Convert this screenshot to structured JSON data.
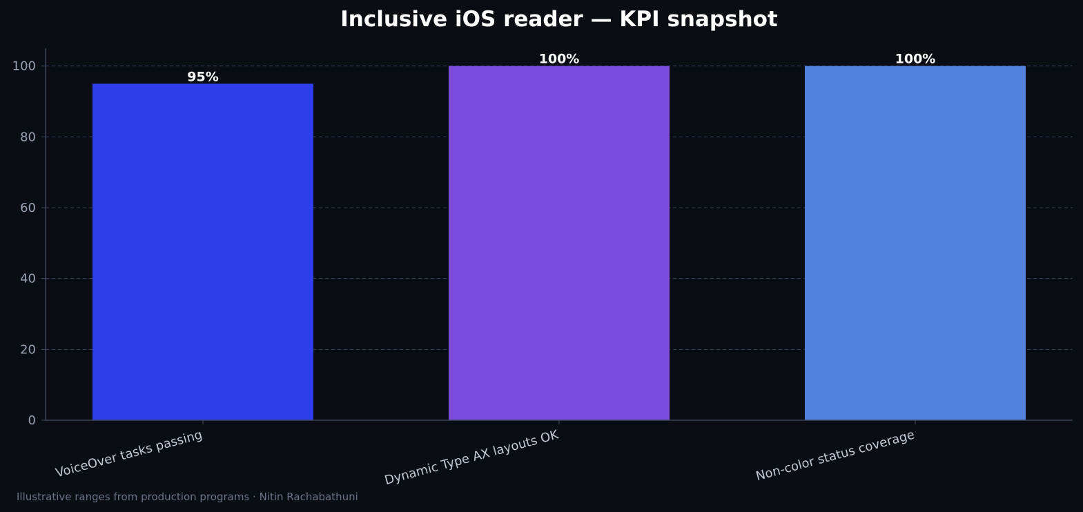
{
  "chart_data": {
    "type": "bar",
    "title": "Inclusive iOS reader — KPI snapshot",
    "categories": [
      "VoiceOver tasks passing",
      "Dynamic Type AX layouts OK",
      "Non-color status coverage"
    ],
    "values": [
      95,
      100,
      100
    ],
    "data_labels": [
      "95%",
      "100%",
      "100%"
    ],
    "bar_colors": [
      "#2e3eec",
      "#7e4cdc",
      "#5382de"
    ],
    "xlabel": "",
    "ylabel": "",
    "ylim": [
      0,
      105
    ],
    "yticks": [
      0,
      20,
      40,
      60,
      80,
      100
    ],
    "grid": true,
    "legend": false
  },
  "footnote": "Illustrative ranges from production programs · Nitin Rachabathuni",
  "colors": {
    "background": "#0a0d14",
    "axis": "#3a4558",
    "grid": "#3a4a66"
  }
}
